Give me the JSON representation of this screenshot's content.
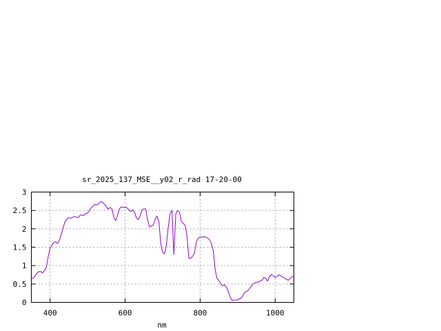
{
  "chart_data": {
    "type": "line",
    "title": "sr_2025_137_MSE__y02_r_rad 17-20-00",
    "xlabel": "nm",
    "ylabel": "",
    "xlim": [
      350,
      1050
    ],
    "ylim": [
      0,
      3
    ],
    "xticks": [
      400,
      600,
      800,
      1000
    ],
    "xtick_labels": [
      "400",
      "600",
      "800",
      "1000"
    ],
    "yticks": [
      0,
      0.5,
      1,
      1.5,
      2,
      2.5,
      3
    ],
    "ytick_labels": [
      "0",
      "0.5",
      "1",
      "1.5",
      "2",
      "2.5",
      "3"
    ],
    "grid": true,
    "legend": "none",
    "line_color": "#9400d3",
    "series": [
      {
        "x": [
          350,
          355,
          360,
          365,
          370,
          375,
          380,
          385,
          390,
          395,
          400,
          405,
          410,
          415,
          420,
          425,
          430,
          435,
          440,
          445,
          450,
          455,
          460,
          465,
          470,
          475,
          480,
          485,
          490,
          495,
          500,
          505,
          510,
          515,
          520,
          525,
          530,
          535,
          540,
          545,
          550,
          555,
          560,
          565,
          570,
          575,
          580,
          585,
          590,
          595,
          600,
          605,
          610,
          615,
          620,
          625,
          630,
          635,
          640,
          645,
          650,
          655,
          660,
          665,
          670,
          675,
          680,
          685,
          690,
          695,
          700,
          705,
          710,
          715,
          720,
          725,
          730,
          735,
          740,
          745,
          750,
          755,
          760,
          765,
          770,
          775,
          780,
          785,
          790,
          795,
          800,
          805,
          810,
          815,
          820,
          825,
          830,
          835,
          840,
          845,
          850,
          855,
          860,
          865,
          870,
          875,
          880,
          885,
          890,
          895,
          900,
          905,
          910,
          915,
          920,
          925,
          930,
          935,
          940,
          945,
          950,
          955,
          960,
          965,
          970,
          975,
          980,
          985,
          990,
          995,
          1000,
          1005,
          1010,
          1015,
          1020,
          1025,
          1030,
          1035,
          1040,
          1045,
          1050
        ],
        "y": [
          0.65,
          0.66,
          0.72,
          0.8,
          0.84,
          0.84,
          0.8,
          0.86,
          0.95,
          1.25,
          1.48,
          1.56,
          1.63,
          1.65,
          1.6,
          1.7,
          1.85,
          2.05,
          2.2,
          2.27,
          2.3,
          2.29,
          2.31,
          2.34,
          2.32,
          2.3,
          2.37,
          2.38,
          2.36,
          2.42,
          2.43,
          2.5,
          2.58,
          2.62,
          2.67,
          2.65,
          2.69,
          2.74,
          2.72,
          2.67,
          2.6,
          2.53,
          2.58,
          2.55,
          2.3,
          2.23,
          2.38,
          2.55,
          2.6,
          2.58,
          2.59,
          2.57,
          2.52,
          2.47,
          2.52,
          2.45,
          2.3,
          2.25,
          2.35,
          2.52,
          2.54,
          2.54,
          2.25,
          2.05,
          2.08,
          2.1,
          2.25,
          2.35,
          2.2,
          1.6,
          1.35,
          1.32,
          1.55,
          2.05,
          2.42,
          2.5,
          1.3,
          2.4,
          2.5,
          2.45,
          2.2,
          2.15,
          2.1,
          1.8,
          1.2,
          1.2,
          1.25,
          1.35,
          1.65,
          1.75,
          1.78,
          1.77,
          1.79,
          1.77,
          1.75,
          1.7,
          1.6,
          1.4,
          0.9,
          0.65,
          0.6,
          0.5,
          0.45,
          0.48,
          0.42,
          0.3,
          0.15,
          0.05,
          0.06,
          0.07,
          0.06,
          0.1,
          0.12,
          0.2,
          0.28,
          0.3,
          0.35,
          0.42,
          0.5,
          0.52,
          0.55,
          0.55,
          0.58,
          0.6,
          0.68,
          0.65,
          0.58,
          0.7,
          0.76,
          0.72,
          0.68,
          0.7,
          0.75,
          0.72,
          0.69,
          0.66,
          0.63,
          0.6,
          0.65,
          0.7,
          0.72
        ]
      }
    ]
  }
}
